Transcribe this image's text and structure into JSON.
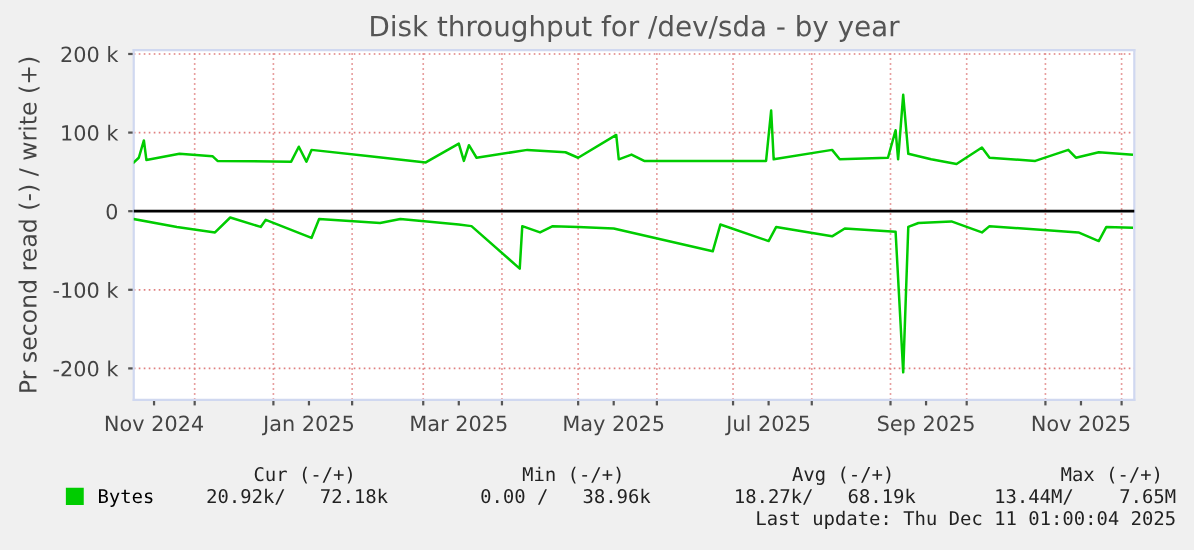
{
  "chart_data": {
    "type": "line",
    "title": "Disk throughput for /dev/sda - by year",
    "ylabel": "Pr second read (-) / write (+)",
    "series": [
      {
        "name": "Bytes",
        "color": "#00cc00",
        "x": [
          "2024-11-07",
          "2024-11-09",
          "2024-11-11",
          "2024-11-12",
          "2024-11-25",
          "2024-12-08",
          "2024-12-10",
          "2025-01-08",
          "2025-01-11",
          "2025-01-14",
          "2025-01-16",
          "2025-02-08",
          "2025-03-02",
          "2025-03-15",
          "2025-03-17",
          "2025-03-19",
          "2025-03-22",
          "2025-04-11",
          "2025-04-26",
          "2025-05-01",
          "2025-05-16",
          "2025-05-17",
          "2025-05-22",
          "2025-05-27",
          "2025-07-14",
          "2025-07-16",
          "2025-07-17",
          "2025-08-09",
          "2025-08-12",
          "2025-08-31",
          "2025-09-03",
          "2025-09-04",
          "2025-09-06",
          "2025-09-08",
          "2025-09-17",
          "2025-09-27",
          "2025-10-07",
          "2025-10-10",
          "2025-10-28",
          "2025-11-10",
          "2025-11-13",
          "2025-11-22",
          "2025-12-05"
        ],
        "values": [
          62000,
          68000,
          90000,
          65000,
          73000,
          70000,
          64000,
          63000,
          82000,
          63000,
          78000,
          70000,
          62000,
          86000,
          64000,
          84000,
          68000,
          78000,
          75000,
          68000,
          97000,
          66000,
          72000,
          64000,
          64000,
          128000,
          66000,
          78000,
          66000,
          68000,
          103000,
          66000,
          148000,
          73000,
          66000,
          60000,
          81000,
          68000,
          64000,
          78000,
          68000,
          75000,
          72000
        ]
      },
      {
        "color": "#00cc00",
        "x": [
          "2024-11-07",
          "2024-11-24",
          "2024-12-09",
          "2024-12-15",
          "2024-12-27",
          "2024-12-29",
          "2025-01-16",
          "2025-01-19",
          "2025-02-12",
          "2025-02-20",
          "2025-03-15",
          "2025-03-20",
          "2025-04-08",
          "2025-04-09",
          "2025-04-16",
          "2025-04-21",
          "2025-05-01",
          "2025-05-15",
          "2025-06-23",
          "2025-06-26",
          "2025-07-15",
          "2025-07-18",
          "2025-08-09",
          "2025-08-14",
          "2025-09-03",
          "2025-09-06",
          "2025-09-08",
          "2025-09-12",
          "2025-09-25",
          "2025-10-07",
          "2025-10-10",
          "2025-11-14",
          "2025-11-22",
          "2025-11-25",
          "2025-12-05"
        ],
        "values": [
          -10000,
          -20000,
          -27000,
          -8000,
          -20000,
          -11000,
          -34000,
          -10000,
          -15000,
          -10000,
          -17000,
          -19000,
          -73000,
          -19000,
          -27000,
          -19000,
          -20000,
          -22000,
          -51000,
          -17000,
          -38000,
          -20000,
          -32000,
          -22000,
          -26000,
          -205000,
          -20000,
          -15000,
          -13000,
          -27000,
          -19000,
          -27000,
          -38000,
          -20000,
          -21000
        ]
      }
    ],
    "xlim": [
      "2024-11-07",
      "2025-12-06"
    ],
    "xticks": [
      {
        "value": "2024-11-15",
        "label": "Nov 2024"
      },
      {
        "value": "2025-01-15",
        "label": "Jan 2025"
      },
      {
        "value": "2025-03-15",
        "label": "Mar 2025"
      },
      {
        "value": "2025-05-15",
        "label": "May 2025"
      },
      {
        "value": "2025-07-15",
        "label": "Jul 2025"
      },
      {
        "value": "2025-09-15",
        "label": "Sep 2025"
      },
      {
        "value": "2025-11-15",
        "label": "Nov 2025"
      },
      {
        "value": "2024-12-01",
        "label": null
      },
      {
        "value": "2025-01-01",
        "label": null
      },
      {
        "value": "2025-02-01",
        "label": null
      },
      {
        "value": "2025-03-01",
        "label": null
      },
      {
        "value": "2025-04-01",
        "label": null
      },
      {
        "value": "2025-05-01",
        "label": null
      },
      {
        "value": "2025-06-01",
        "label": null
      },
      {
        "value": "2025-07-01",
        "label": null
      },
      {
        "value": "2025-08-01",
        "label": null
      },
      {
        "value": "2025-09-01",
        "label": null
      },
      {
        "value": "2025-10-01",
        "label": null
      },
      {
        "value": "2025-11-01",
        "label": null
      },
      {
        "value": "2025-12-01",
        "label": null
      }
    ],
    "ylim": [
      -240000,
      205000
    ],
    "yticks": [
      {
        "value": 200000,
        "label": "200 k"
      },
      {
        "value": 100000,
        "label": "100 k"
      },
      0,
      {
        "value": -100000,
        "label": "-100 k"
      },
      {
        "value": -200000,
        "label": "-200 k"
      }
    ],
    "ref_lines": [
      {
        "axis": "y",
        "value": 0,
        "color": "#000000"
      }
    ],
    "grid": true,
    "legend": "bottom",
    "annotations": [
      "Cur (-/+)",
      "Min (-/+)",
      "Avg (-/+)",
      "Max (-/+)",
      "20.92k/   72.18k",
      "0.00 /   38.96k",
      "18.27k/   68.19k",
      "13.44M/    7.65M",
      "Last update: Thu Dec 11 01:00:04 2025"
    ]
  }
}
